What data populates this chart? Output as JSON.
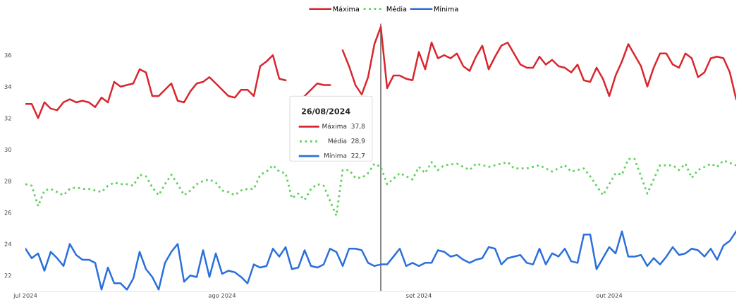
{
  "chart_data": {
    "type": "line",
    "xlim": [
      "2024-07-01",
      "2024-10-21"
    ],
    "xticks": [
      {
        "value": "2024-07-01",
        "label": "jul 2024"
      },
      {
        "value": "2024-08-01",
        "label": "ago 2024"
      },
      {
        "value": "2024-09-01",
        "label": "set 2024"
      },
      {
        "value": "2024-10-01",
        "label": "out 2024"
      }
    ],
    "ylim": [
      21,
      38
    ],
    "yticks": [
      22,
      24,
      26,
      28,
      30,
      32,
      34,
      36
    ],
    "grid": false,
    "legend": "top",
    "marker": "none",
    "ref_lines": [
      {
        "axis": "x",
        "value": "2024-08-26",
        "color": "#555555",
        "line_style": "solid"
      }
    ],
    "annotations": [
      "26/08/2024",
      "Máxima  37,8",
      "Média  28,9",
      "Mínima  22,7"
    ],
    "series": [
      {
        "name": "Máxima",
        "color": "#d9262e",
        "line_style": "solid",
        "x": [
          "2024-07-01",
          "2024-07-02",
          "2024-07-03",
          "2024-07-04",
          "2024-07-05",
          "2024-07-06",
          "2024-07-07",
          "2024-07-08",
          "2024-07-09",
          "2024-07-10",
          "2024-07-11",
          "2024-07-12",
          "2024-07-13",
          "2024-07-14",
          "2024-07-15",
          "2024-07-16",
          "2024-07-17",
          "2024-07-18",
          "2024-07-19",
          "2024-07-20",
          "2024-07-21",
          "2024-07-22",
          "2024-07-23",
          "2024-07-24",
          "2024-07-25",
          "2024-07-26",
          "2024-07-27",
          "2024-07-28",
          "2024-07-29",
          "2024-07-30",
          "2024-07-31",
          "2024-08-01",
          "2024-08-02",
          "2024-08-03",
          "2024-08-04",
          "2024-08-05",
          "2024-08-06",
          "2024-08-07",
          "2024-08-08",
          "2024-08-09",
          "2024-08-10",
          "2024-08-11",
          "2024-08-12",
          "2024-08-13",
          "2024-08-14",
          "2024-08-16",
          "2024-08-17",
          "2024-08-18",
          "2024-08-19",
          "2024-08-20",
          "2024-08-21",
          "2024-08-22",
          "2024-08-23",
          "2024-08-24",
          "2024-08-25",
          "2024-08-26",
          "2024-08-27",
          "2024-08-28",
          "2024-08-29",
          "2024-08-30",
          "2024-08-31",
          "2024-09-01",
          "2024-09-02",
          "2024-09-03",
          "2024-09-04",
          "2024-09-05",
          "2024-09-06",
          "2024-09-07",
          "2024-09-08",
          "2024-09-09",
          "2024-09-10",
          "2024-09-11",
          "2024-09-12",
          "2024-09-13",
          "2024-09-14",
          "2024-09-15",
          "2024-09-16",
          "2024-09-17",
          "2024-09-18",
          "2024-09-19",
          "2024-09-20",
          "2024-09-21",
          "2024-09-22",
          "2024-09-23",
          "2024-09-24",
          "2024-09-25",
          "2024-09-26",
          "2024-09-27",
          "2024-09-28",
          "2024-09-29",
          "2024-09-30",
          "2024-10-01",
          "2024-10-02",
          "2024-10-03",
          "2024-10-04",
          "2024-10-05",
          "2024-10-06",
          "2024-10-07",
          "2024-10-08",
          "2024-10-09",
          "2024-10-10",
          "2024-10-11",
          "2024-10-12",
          "2024-10-13",
          "2024-10-14",
          "2024-10-15",
          "2024-10-16",
          "2024-10-17",
          "2024-10-18",
          "2024-10-19",
          "2024-10-20",
          "2024-10-21"
        ],
        "values": [
          32.9,
          32.9,
          32.0,
          33.0,
          32.6,
          32.5,
          33.0,
          33.2,
          33.0,
          33.1,
          33.0,
          32.7,
          33.3,
          33.0,
          34.3,
          34.0,
          34.1,
          34.2,
          35.1,
          34.9,
          33.4,
          33.4,
          33.8,
          34.2,
          33.1,
          33.0,
          33.7,
          34.2,
          34.3,
          34.6,
          34.2,
          33.8,
          33.4,
          33.3,
          33.8,
          33.8,
          33.4,
          35.3,
          35.6,
          36.0,
          34.5,
          34.4,
          null,
          null,
          33.4,
          34.2,
          34.1,
          34.1,
          null,
          36.3,
          35.3,
          34.1,
          33.5,
          34.6,
          36.7,
          37.8,
          33.9,
          34.7,
          34.7,
          34.5,
          34.4,
          36.2,
          35.1,
          36.8,
          35.8,
          36.0,
          35.8,
          36.1,
          35.3,
          35.0,
          35.9,
          36.6,
          35.1,
          35.9,
          36.6,
          36.8,
          36.1,
          35.4,
          35.2,
          35.2,
          35.9,
          35.4,
          35.7,
          35.3,
          35.2,
          34.9,
          35.4,
          34.4,
          34.3,
          35.2,
          34.5,
          33.4,
          34.7,
          35.6,
          36.7,
          36.0,
          35.3,
          34.0,
          35.2,
          36.1,
          36.1,
          35.4,
          35.2,
          36.1,
          35.8,
          34.6,
          34.9,
          35.8,
          35.9,
          35.8,
          34.9,
          33.2
        ]
      },
      {
        "name": "Média",
        "color": "#5fd35f",
        "line_style": "dotted",
        "x": [
          "2024-07-01",
          "2024-07-02",
          "2024-07-03",
          "2024-07-04",
          "2024-07-05",
          "2024-07-06",
          "2024-07-07",
          "2024-07-08",
          "2024-07-09",
          "2024-07-10",
          "2024-07-11",
          "2024-07-12",
          "2024-07-13",
          "2024-07-14",
          "2024-07-15",
          "2024-07-16",
          "2024-07-17",
          "2024-07-18",
          "2024-07-19",
          "2024-07-20",
          "2024-07-21",
          "2024-07-22",
          "2024-07-23",
          "2024-07-24",
          "2024-07-25",
          "2024-07-26",
          "2024-07-27",
          "2024-07-28",
          "2024-07-29",
          "2024-07-30",
          "2024-07-31",
          "2024-08-01",
          "2024-08-02",
          "2024-08-03",
          "2024-08-04",
          "2024-08-05",
          "2024-08-06",
          "2024-08-07",
          "2024-08-08",
          "2024-08-09",
          "2024-08-10",
          "2024-08-11",
          "2024-08-12",
          "2024-08-13",
          "2024-08-14",
          "2024-08-15",
          "2024-08-16",
          "2024-08-17",
          "2024-08-19",
          "2024-08-20",
          "2024-08-21",
          "2024-08-22",
          "2024-08-23",
          "2024-08-24",
          "2024-08-25",
          "2024-08-26",
          "2024-08-27",
          "2024-08-29",
          "2024-08-31",
          "2024-09-01",
          "2024-09-02",
          "2024-09-03",
          "2024-09-04",
          "2024-09-05",
          "2024-09-07",
          "2024-09-09",
          "2024-09-10",
          "2024-09-12",
          "2024-09-13",
          "2024-09-15",
          "2024-09-16",
          "2024-09-18",
          "2024-09-20",
          "2024-09-22",
          "2024-09-24",
          "2024-09-25",
          "2024-09-27",
          "2024-09-28",
          "2024-09-30",
          "2024-10-02",
          "2024-10-03",
          "2024-10-04",
          "2024-10-05",
          "2024-10-07",
          "2024-10-09",
          "2024-10-11",
          "2024-10-12",
          "2024-10-13",
          "2024-10-14",
          "2024-10-15",
          "2024-10-16",
          "2024-10-17",
          "2024-10-18",
          "2024-10-19",
          "2024-10-21"
        ],
        "values": [
          27.8,
          27.7,
          26.4,
          27.4,
          27.5,
          27.3,
          27.1,
          27.5,
          27.6,
          27.5,
          27.5,
          27.4,
          27.3,
          27.7,
          27.9,
          27.8,
          27.8,
          27.7,
          28.4,
          28.3,
          27.6,
          27.1,
          27.8,
          28.4,
          27.8,
          27.1,
          27.4,
          27.8,
          28.0,
          28.1,
          27.9,
          27.4,
          27.3,
          27.1,
          27.4,
          27.5,
          27.5,
          28.4,
          28.6,
          29.0,
          28.6,
          28.5,
          26.9,
          27.2,
          26.8,
          27.5,
          27.8,
          27.7,
          25.8,
          28.7,
          28.7,
          28.2,
          28.2,
          28.5,
          29.1,
          28.9,
          27.8,
          28.5,
          28.1,
          28.9,
          28.5,
          29.2,
          28.7,
          29.0,
          29.1,
          28.7,
          29.1,
          28.9,
          29.0,
          29.2,
          28.8,
          28.8,
          29.0,
          28.6,
          29.0,
          28.6,
          28.8,
          28.3,
          27.1,
          28.5,
          28.4,
          29.4,
          29.4,
          27.2,
          29.0,
          29.0,
          28.7,
          29.1,
          28.2,
          28.7,
          28.9,
          29.1,
          28.9,
          29.3,
          29.0
        ]
      },
      {
        "name": "Mínima",
        "color": "#2a6fdb",
        "line_style": "solid",
        "x": [
          "2024-07-01",
          "2024-07-02",
          "2024-07-03",
          "2024-07-04",
          "2024-07-05",
          "2024-07-06",
          "2024-07-07",
          "2024-07-08",
          "2024-07-09",
          "2024-07-10",
          "2024-07-11",
          "2024-07-12",
          "2024-07-13",
          "2024-07-14",
          "2024-07-15",
          "2024-07-16",
          "2024-07-17",
          "2024-07-18",
          "2024-07-19",
          "2024-07-20",
          "2024-07-21",
          "2024-07-22",
          "2024-07-23",
          "2024-07-24",
          "2024-07-25",
          "2024-07-26",
          "2024-07-27",
          "2024-07-28",
          "2024-07-29",
          "2024-07-30",
          "2024-07-31",
          "2024-08-01",
          "2024-08-02",
          "2024-08-03",
          "2024-08-04",
          "2024-08-05",
          "2024-08-06",
          "2024-08-07",
          "2024-08-08",
          "2024-08-09",
          "2024-08-10",
          "2024-08-11",
          "2024-08-12",
          "2024-08-13",
          "2024-08-14",
          "2024-08-15",
          "2024-08-16",
          "2024-08-17",
          "2024-08-18",
          "2024-08-19",
          "2024-08-20",
          "2024-08-21",
          "2024-08-22",
          "2024-08-23",
          "2024-08-24",
          "2024-08-25",
          "2024-08-26",
          "2024-08-27",
          "2024-08-29",
          "2024-08-30",
          "2024-08-31",
          "2024-09-01",
          "2024-09-02",
          "2024-09-03",
          "2024-09-04",
          "2024-09-05",
          "2024-09-06",
          "2024-09-07",
          "2024-09-08",
          "2024-09-09",
          "2024-09-10",
          "2024-09-11",
          "2024-09-12",
          "2024-09-13",
          "2024-09-14",
          "2024-09-15",
          "2024-09-16",
          "2024-09-17",
          "2024-09-18",
          "2024-09-19",
          "2024-09-20",
          "2024-09-21",
          "2024-09-22",
          "2024-09-23",
          "2024-09-24",
          "2024-09-25",
          "2024-09-26",
          "2024-09-27",
          "2024-09-28",
          "2024-09-29",
          "2024-09-30",
          "2024-10-01",
          "2024-10-02",
          "2024-10-03",
          "2024-10-04",
          "2024-10-05",
          "2024-10-06",
          "2024-10-07",
          "2024-10-08",
          "2024-10-09",
          "2024-10-10",
          "2024-10-11",
          "2024-10-12",
          "2024-10-13",
          "2024-10-14",
          "2024-10-15",
          "2024-10-16",
          "2024-10-17",
          "2024-10-18",
          "2024-10-19",
          "2024-10-20",
          "2024-10-21"
        ],
        "values": [
          23.7,
          23.1,
          23.4,
          22.3,
          23.5,
          23.1,
          22.6,
          24.0,
          23.3,
          23.0,
          23.0,
          22.8,
          21.1,
          22.5,
          21.5,
          21.5,
          21.1,
          21.8,
          23.5,
          22.4,
          21.9,
          21.1,
          22.8,
          23.5,
          24.0,
          21.6,
          22.0,
          21.9,
          23.6,
          21.9,
          23.4,
          22.1,
          22.3,
          22.2,
          21.9,
          21.5,
          22.7,
          22.5,
          22.6,
          23.7,
          23.2,
          23.8,
          22.4,
          22.5,
          23.6,
          22.6,
          22.5,
          22.7,
          23.7,
          23.5,
          22.6,
          23.7,
          23.7,
          23.6,
          22.8,
          22.6,
          22.7,
          22.7,
          23.7,
          22.6,
          22.8,
          22.6,
          22.8,
          22.8,
          23.6,
          23.5,
          23.2,
          23.3,
          23.0,
          22.8,
          23.0,
          23.1,
          23.8,
          23.7,
          22.7,
          23.1,
          23.2,
          23.3,
          22.8,
          22.7,
          23.7,
          22.7,
          23.4,
          23.2,
          23.7,
          22.9,
          22.8,
          24.6,
          24.6,
          22.4,
          23.1,
          23.8,
          23.4,
          24.8,
          23.2,
          23.2,
          23.3,
          22.6,
          23.1,
          22.7,
          23.2,
          23.8,
          23.3,
          23.4,
          23.7,
          23.6,
          23.2,
          23.7,
          23.0,
          23.9,
          24.2,
          24.8
        ]
      }
    ]
  }
}
